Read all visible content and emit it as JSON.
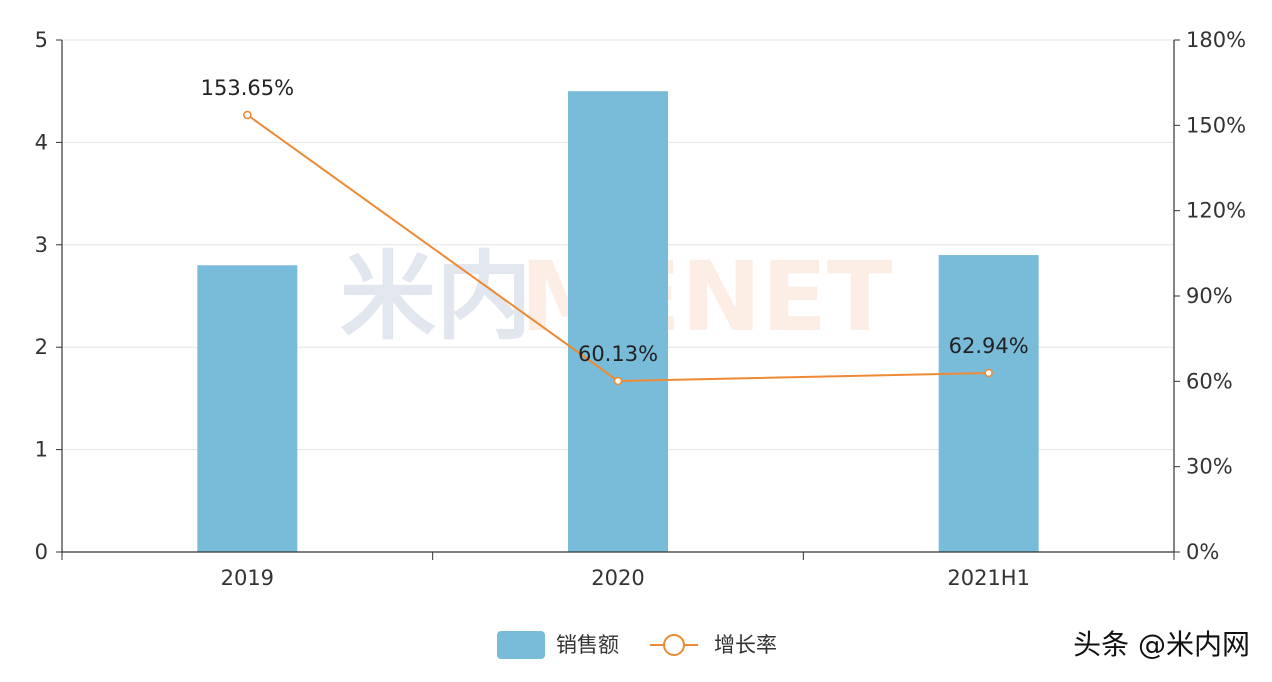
{
  "chart_data": {
    "type": "bar",
    "categories": [
      "2019",
      "2020",
      "2021H1"
    ],
    "series": [
      {
        "name": "销售额",
        "type": "bar",
        "axis": "left",
        "color": "#78bcd9",
        "values": [
          2.8,
          4.5,
          2.9
        ]
      },
      {
        "name": "增长率",
        "type": "line",
        "axis": "right",
        "color": "#ee8a33",
        "values": [
          153.65,
          60.13,
          62.94
        ],
        "data_labels": [
          "153.65%",
          "60.13%",
          "62.94%"
        ]
      }
    ],
    "y_left": {
      "min": 0,
      "max": 5,
      "ticks": [
        "0",
        "1",
        "2",
        "3",
        "4",
        "5"
      ]
    },
    "y_right": {
      "min": 0,
      "max": 180,
      "ticks": [
        "0%",
        "30%",
        "60%",
        "90%",
        "120%",
        "150%",
        "180%"
      ]
    },
    "grid": true,
    "legend_position": "bottom-center"
  },
  "watermark": {
    "text_cn": "米内",
    "text_en": "MENET"
  },
  "footer": {
    "text": "头条 @米内网"
  }
}
